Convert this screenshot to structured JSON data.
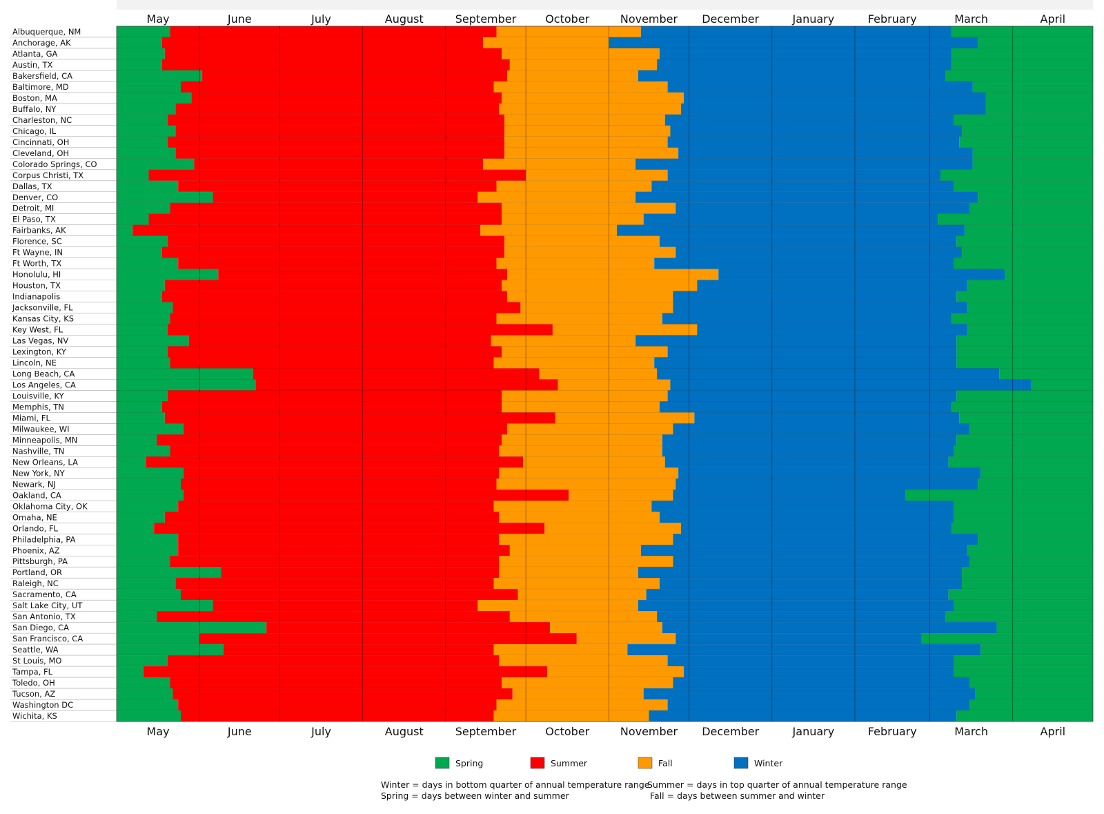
{
  "chart_data": {
    "type": "bar",
    "title": "",
    "xlabel": "",
    "ylabel": "",
    "subtype": "stacked-horizontal-seasonal-timeline",
    "x_unit": "days since May 1",
    "xlim": [
      0,
      365
    ],
    "month_ticks": [
      {
        "label": "May",
        "start": 0
      },
      {
        "label": "June",
        "start": 31
      },
      {
        "label": "July",
        "start": 61
      },
      {
        "label": "August",
        "start": 92
      },
      {
        "label": "September",
        "start": 123
      },
      {
        "label": "October",
        "start": 153
      },
      {
        "label": "November",
        "start": 184
      },
      {
        "label": "December",
        "start": 214
      },
      {
        "label": "January",
        "start": 245
      },
      {
        "label": "February",
        "start": 276
      },
      {
        "label": "March",
        "start": 304
      },
      {
        "label": "April",
        "start": 335
      }
    ],
    "colors": {
      "Spring": "#00a84f",
      "Summer": "#ff0000",
      "Fall": "#ff9900",
      "Winter": "#0070c0"
    },
    "series": [
      "Spring",
      "Summer",
      "Fall",
      "Winter"
    ],
    "columns": [
      "summer_start",
      "fall_start",
      "winter_start",
      "spring_start"
    ],
    "cities": [
      [
        "Albuquerque, NM",
        20,
        142,
        196,
        312
      ],
      [
        "Anchorage, AK",
        17,
        137,
        184,
        322
      ],
      [
        "Atlanta, GA",
        18,
        144,
        203,
        312
      ],
      [
        "Austin, TX",
        17,
        147,
        202,
        312
      ],
      [
        "Bakersfield, CA",
        32,
        146,
        195,
        310
      ],
      [
        "Baltimore, MD",
        24,
        141,
        206,
        320
      ],
      [
        "Boston, MA",
        28,
        144,
        212,
        325
      ],
      [
        "Buffalo, NY",
        22,
        143,
        211,
        325
      ],
      [
        "Charleston, NC",
        19,
        145,
        205,
        313
      ],
      [
        "Chicago, IL",
        22,
        145,
        207,
        316
      ],
      [
        "Cincinnati, OH",
        19,
        145,
        206,
        315
      ],
      [
        "Cleveland, OH",
        22,
        145,
        210,
        320
      ],
      [
        "Colorado Springs, CO",
        29,
        137,
        194,
        320
      ],
      [
        "Corpus Christi, TX",
        12,
        153,
        206,
        308
      ],
      [
        "Dallas, TX",
        23,
        142,
        200,
        313
      ],
      [
        "Denver, CO",
        36,
        135,
        194,
        322
      ],
      [
        "Detroit, MI",
        20,
        144,
        209,
        319
      ],
      [
        "El Paso, TX",
        12,
        144,
        197,
        307
      ],
      [
        "Fairbanks, AK",
        6,
        136,
        187,
        317
      ],
      [
        "Florence, SC",
        19,
        145,
        203,
        314
      ],
      [
        "Ft Wayne, IN",
        17,
        145,
        209,
        316
      ],
      [
        "Ft Worth, TX",
        23,
        142,
        201,
        313
      ],
      [
        "Honolulu, HI",
        38,
        146,
        225,
        332
      ],
      [
        "Houston, TX",
        18,
        144,
        217,
        318
      ],
      [
        "Indianapolis",
        17,
        146,
        208,
        314
      ],
      [
        "Jacksonville, FL",
        21,
        151,
        208,
        318
      ],
      [
        "Kansas City, KS",
        20,
        142,
        204,
        312
      ],
      [
        "Key West, FL",
        19,
        163,
        217,
        318
      ],
      [
        "Las Vegas, NV",
        27,
        140,
        194,
        314
      ],
      [
        "Lexington, KY",
        19,
        144,
        206,
        314
      ],
      [
        "Lincoln, NE",
        20,
        141,
        201,
        314
      ],
      [
        "Long Beach, CA",
        51,
        158,
        202,
        330
      ],
      [
        "Los Angeles, CA",
        52,
        165,
        207,
        342
      ],
      [
        "Louisville, KY",
        19,
        144,
        206,
        314
      ],
      [
        "Memphis, TN",
        17,
        144,
        203,
        312
      ],
      [
        "Miami, FL",
        18,
        164,
        216,
        315
      ],
      [
        "Milwaukee, WI",
        25,
        146,
        208,
        319
      ],
      [
        "Minneapolis, MN",
        15,
        144,
        204,
        314
      ],
      [
        "Nashville, TN",
        20,
        143,
        204,
        313
      ],
      [
        "New Orleans, LA",
        11,
        152,
        205,
        311
      ],
      [
        "New York, NY",
        25,
        143,
        210,
        323
      ],
      [
        "Newark, NJ",
        24,
        142,
        209,
        322
      ],
      [
        "Oakland, CA",
        25,
        169,
        208,
        295
      ],
      [
        "Oklahoma City, OK",
        23,
        141,
        200,
        313
      ],
      [
        "Omaha, NE",
        18,
        143,
        203,
        313
      ],
      [
        "Orlando, FL",
        14,
        160,
        211,
        312
      ],
      [
        "Philadelphia, PA",
        23,
        143,
        208,
        322
      ],
      [
        "Phoenix, AZ",
        23,
        147,
        196,
        318
      ],
      [
        "Pittsburgh, PA",
        20,
        143,
        208,
        319
      ],
      [
        "Portland, OR",
        39,
        143,
        195,
        316
      ],
      [
        "Raleigh, NC",
        22,
        141,
        203,
        316
      ],
      [
        "Sacramento, CA",
        24,
        150,
        198,
        311
      ],
      [
        "Salt Lake City, UT",
        36,
        135,
        195,
        313
      ],
      [
        "San Antonio, TX",
        15,
        147,
        202,
        310
      ],
      [
        "San Diego, CA",
        56,
        162,
        204,
        329
      ],
      [
        "San Francisco, CA",
        31,
        172,
        209,
        301
      ],
      [
        "Seattle, WA",
        40,
        141,
        191,
        323
      ],
      [
        "St Louis, MO",
        19,
        143,
        206,
        313
      ],
      [
        "Tampa, FL",
        10,
        161,
        212,
        313
      ],
      [
        "Toledo, OH",
        20,
        144,
        208,
        319
      ],
      [
        "Tucson, AZ",
        21,
        148,
        197,
        321
      ],
      [
        "Washington DC",
        23,
        142,
        206,
        319
      ],
      [
        "Wichita, KS",
        24,
        141,
        199,
        314
      ]
    ],
    "legend": {
      "placement": "bottom",
      "entries": [
        {
          "label": "Spring",
          "color": "#00a84f"
        },
        {
          "label": "Summer",
          "color": "#ff0000"
        },
        {
          "label": "Fall",
          "color": "#ff9900"
        },
        {
          "label": "Winter",
          "color": "#0070c0"
        }
      ]
    },
    "notes": {
      "winter": "Winter = days in bottom quarter of annual temperature range",
      "summer": "Summer = days in top quarter of annual temperature range",
      "spring": "Spring = days between winter and summer",
      "fall": "Fall = days between summer and winter"
    }
  }
}
